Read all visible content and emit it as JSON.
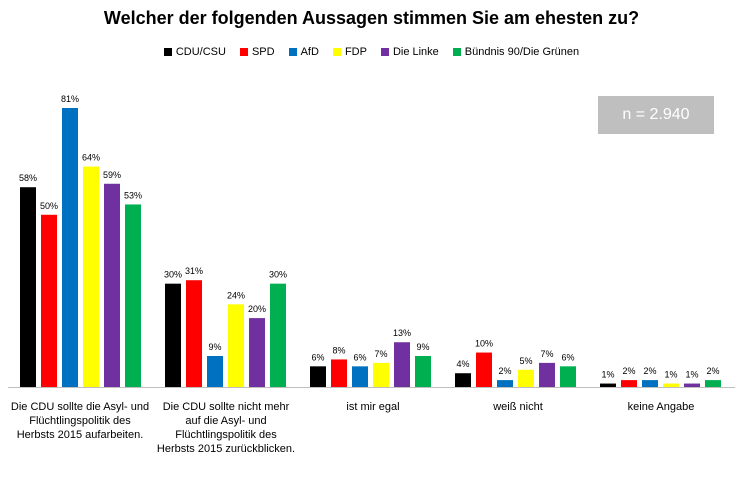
{
  "chart_data": {
    "type": "bar",
    "title": "Welcher der folgenden Aussagen stimmen Sie am ehesten zu?",
    "sample_note": "n = 2.940",
    "ylim": [
      0,
      85
    ],
    "grid": false,
    "legend_position": "top",
    "categories": [
      "Die CDU sollte die Asyl- und Flüchtlingspolitik des Herbsts 2015 aufarbeiten.",
      "Die CDU sollte nicht mehr auf die Asyl- und Flüchtlingspolitik des Herbsts 2015 zurückblicken.",
      "ist mir egal",
      "weiß nicht",
      "keine Angabe"
    ],
    "series": [
      {
        "name": "CDU/CSU",
        "color": "#000000",
        "values": [
          58,
          30,
          6,
          4,
          1
        ]
      },
      {
        "name": "SPD",
        "color": "#ff0000",
        "values": [
          50,
          31,
          8,
          10,
          2
        ]
      },
      {
        "name": "AfD",
        "color": "#0070c0",
        "values": [
          81,
          9,
          6,
          2,
          2
        ]
      },
      {
        "name": "FDP",
        "color": "#ffff00",
        "values": [
          64,
          24,
          7,
          5,
          1
        ]
      },
      {
        "name": "Die Linke",
        "color": "#7030a0",
        "values": [
          59,
          20,
          13,
          7,
          1
        ]
      },
      {
        "name": "Bündnis 90/Die Grünen",
        "color": "#00b050",
        "values": [
          53,
          30,
          9,
          6,
          2
        ]
      }
    ]
  }
}
